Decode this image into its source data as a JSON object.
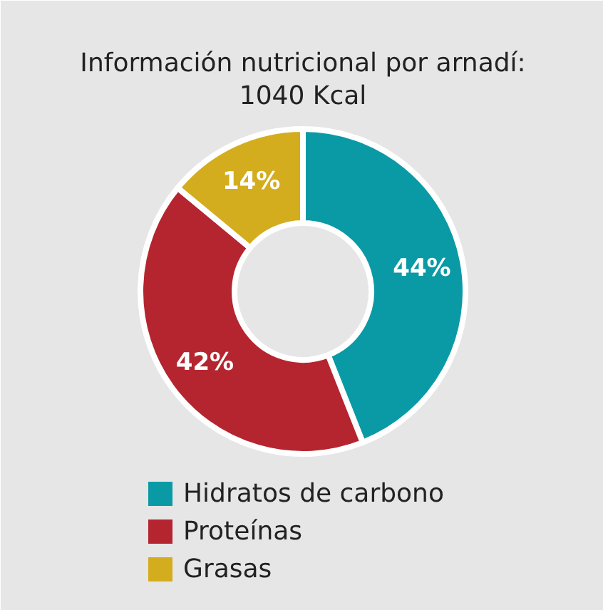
{
  "chart_data": {
    "type": "donut",
    "title": "Información nutricional por arnadí:\n1040 Kcal",
    "categories": [
      "Hidratos de carbono",
      "Proteínas",
      "Grasas"
    ],
    "values": [
      44,
      42,
      14
    ],
    "colors": [
      "#0a9aa6",
      "#b5252f",
      "#d4ad1e"
    ],
    "value_labels": [
      "44%",
      "42%",
      "14%"
    ],
    "legend": "bottom"
  }
}
